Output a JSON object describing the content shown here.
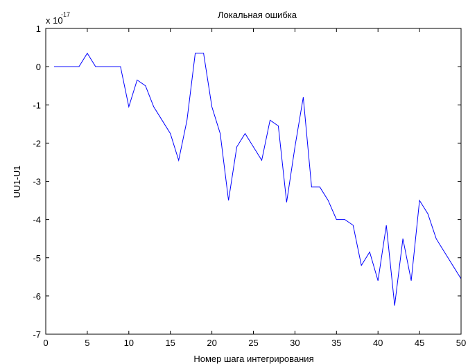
{
  "chart_data": {
    "type": "line",
    "title": "Локальная ошибка",
    "xlabel": "Номер шага интегрирования",
    "ylabel": "UU1-U1",
    "multiplier_base": "x 10",
    "multiplier_exp": "-17",
    "xlim": [
      0,
      50
    ],
    "ylim": [
      -7,
      1
    ],
    "xticks": [
      0,
      5,
      10,
      15,
      20,
      25,
      30,
      35,
      40,
      45,
      50
    ],
    "yticks": [
      1,
      0,
      -1,
      -2,
      -3,
      -4,
      -5,
      -6,
      -7
    ],
    "grid": false,
    "series": [
      {
        "color": "#0000ff",
        "x": [
          1,
          2,
          3,
          4,
          5,
          6,
          7,
          8,
          9,
          10,
          11,
          12,
          13,
          14,
          15,
          16,
          17,
          18,
          19,
          20,
          21,
          22,
          23,
          24,
          25,
          26,
          27,
          28,
          29,
          30,
          31,
          32,
          33,
          34,
          35,
          36,
          37,
          38,
          39,
          40,
          41,
          42,
          43,
          44,
          45,
          46,
          47,
          48,
          49,
          50
        ],
        "y": [
          0,
          0,
          0,
          0,
          0.35,
          0,
          0,
          0,
          0,
          -1.05,
          -0.35,
          -0.5,
          -1.05,
          -1.4,
          -1.75,
          -2.45,
          -1.4,
          0.35,
          0.35,
          -1.05,
          -1.75,
          -3.5,
          -2.1,
          -1.75,
          -2.1,
          -2.45,
          -1.4,
          -1.55,
          -3.55,
          -2.1,
          -0.8,
          -3.15,
          -3.15,
          -3.5,
          -4.0,
          -4.0,
          -4.15,
          -5.2,
          -4.85,
          -5.6,
          -4.15,
          -6.25,
          -4.5,
          -5.6,
          -3.5,
          -3.85,
          -4.5,
          -4.85,
          -5.2,
          -5.55
        ]
      }
    ]
  }
}
